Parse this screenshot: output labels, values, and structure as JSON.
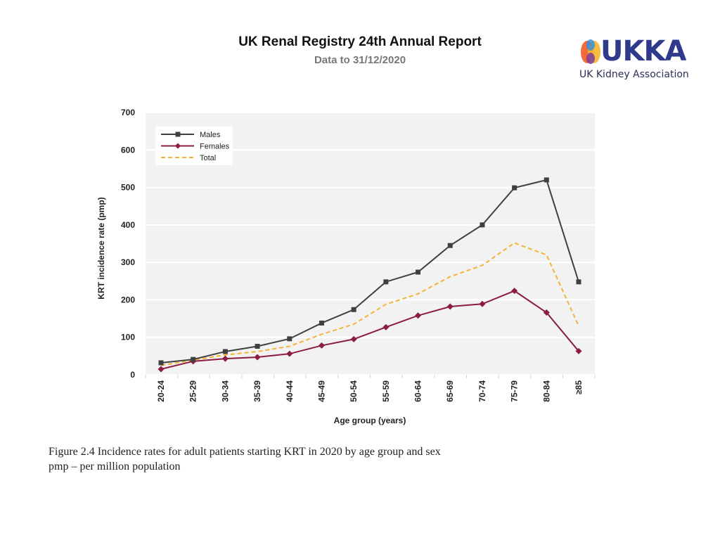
{
  "header": {
    "title": "UK Renal Registry 24th Annual Report",
    "subtitle": "Data to 31/12/2020"
  },
  "logo": {
    "wordmark": "UKKA",
    "tagline": "UK Kidney Association",
    "colors": [
      "#f26b3a",
      "#f7b52c",
      "#3a8fd6",
      "#7a3e9d",
      "#2f3a8c"
    ]
  },
  "caption": {
    "line1": "Figure 2.4 Incidence rates for adult patients starting KRT in 2020 by age group and sex",
    "line2": "pmp – per million population"
  },
  "chart_data": {
    "type": "line",
    "title": "",
    "xlabel": "Age group (years)",
    "ylabel": "KRT incidence rate (pmp)",
    "ylim": [
      0,
      700
    ],
    "yticks": [
      0,
      100,
      200,
      300,
      400,
      500,
      600,
      700
    ],
    "grid": true,
    "legend_position": "top-left",
    "categories": [
      "20-24",
      "25-29",
      "30-34",
      "35-39",
      "40-44",
      "45-49",
      "50-54",
      "55-59",
      "60-64",
      "65-69",
      "70-74",
      "75-79",
      "80-84",
      "≥85"
    ],
    "series": [
      {
        "name": "Males",
        "color": "#404040",
        "marker": "square",
        "dashed": false,
        "values": [
          32,
          41,
          62,
          76,
          96,
          138,
          174,
          248,
          274,
          345,
          400,
          499,
          520,
          248
        ]
      },
      {
        "name": "Females",
        "color": "#8b1c43",
        "marker": "diamond",
        "dashed": false,
        "values": [
          15,
          36,
          43,
          47,
          56,
          78,
          95,
          127,
          158,
          182,
          189,
          224,
          166,
          63
        ]
      },
      {
        "name": "Total",
        "color": "#f5b335",
        "marker": "none",
        "dashed": true,
        "values": [
          25,
          39,
          53,
          62,
          76,
          108,
          135,
          188,
          216,
          262,
          292,
          352,
          320,
          130
        ]
      }
    ]
  }
}
